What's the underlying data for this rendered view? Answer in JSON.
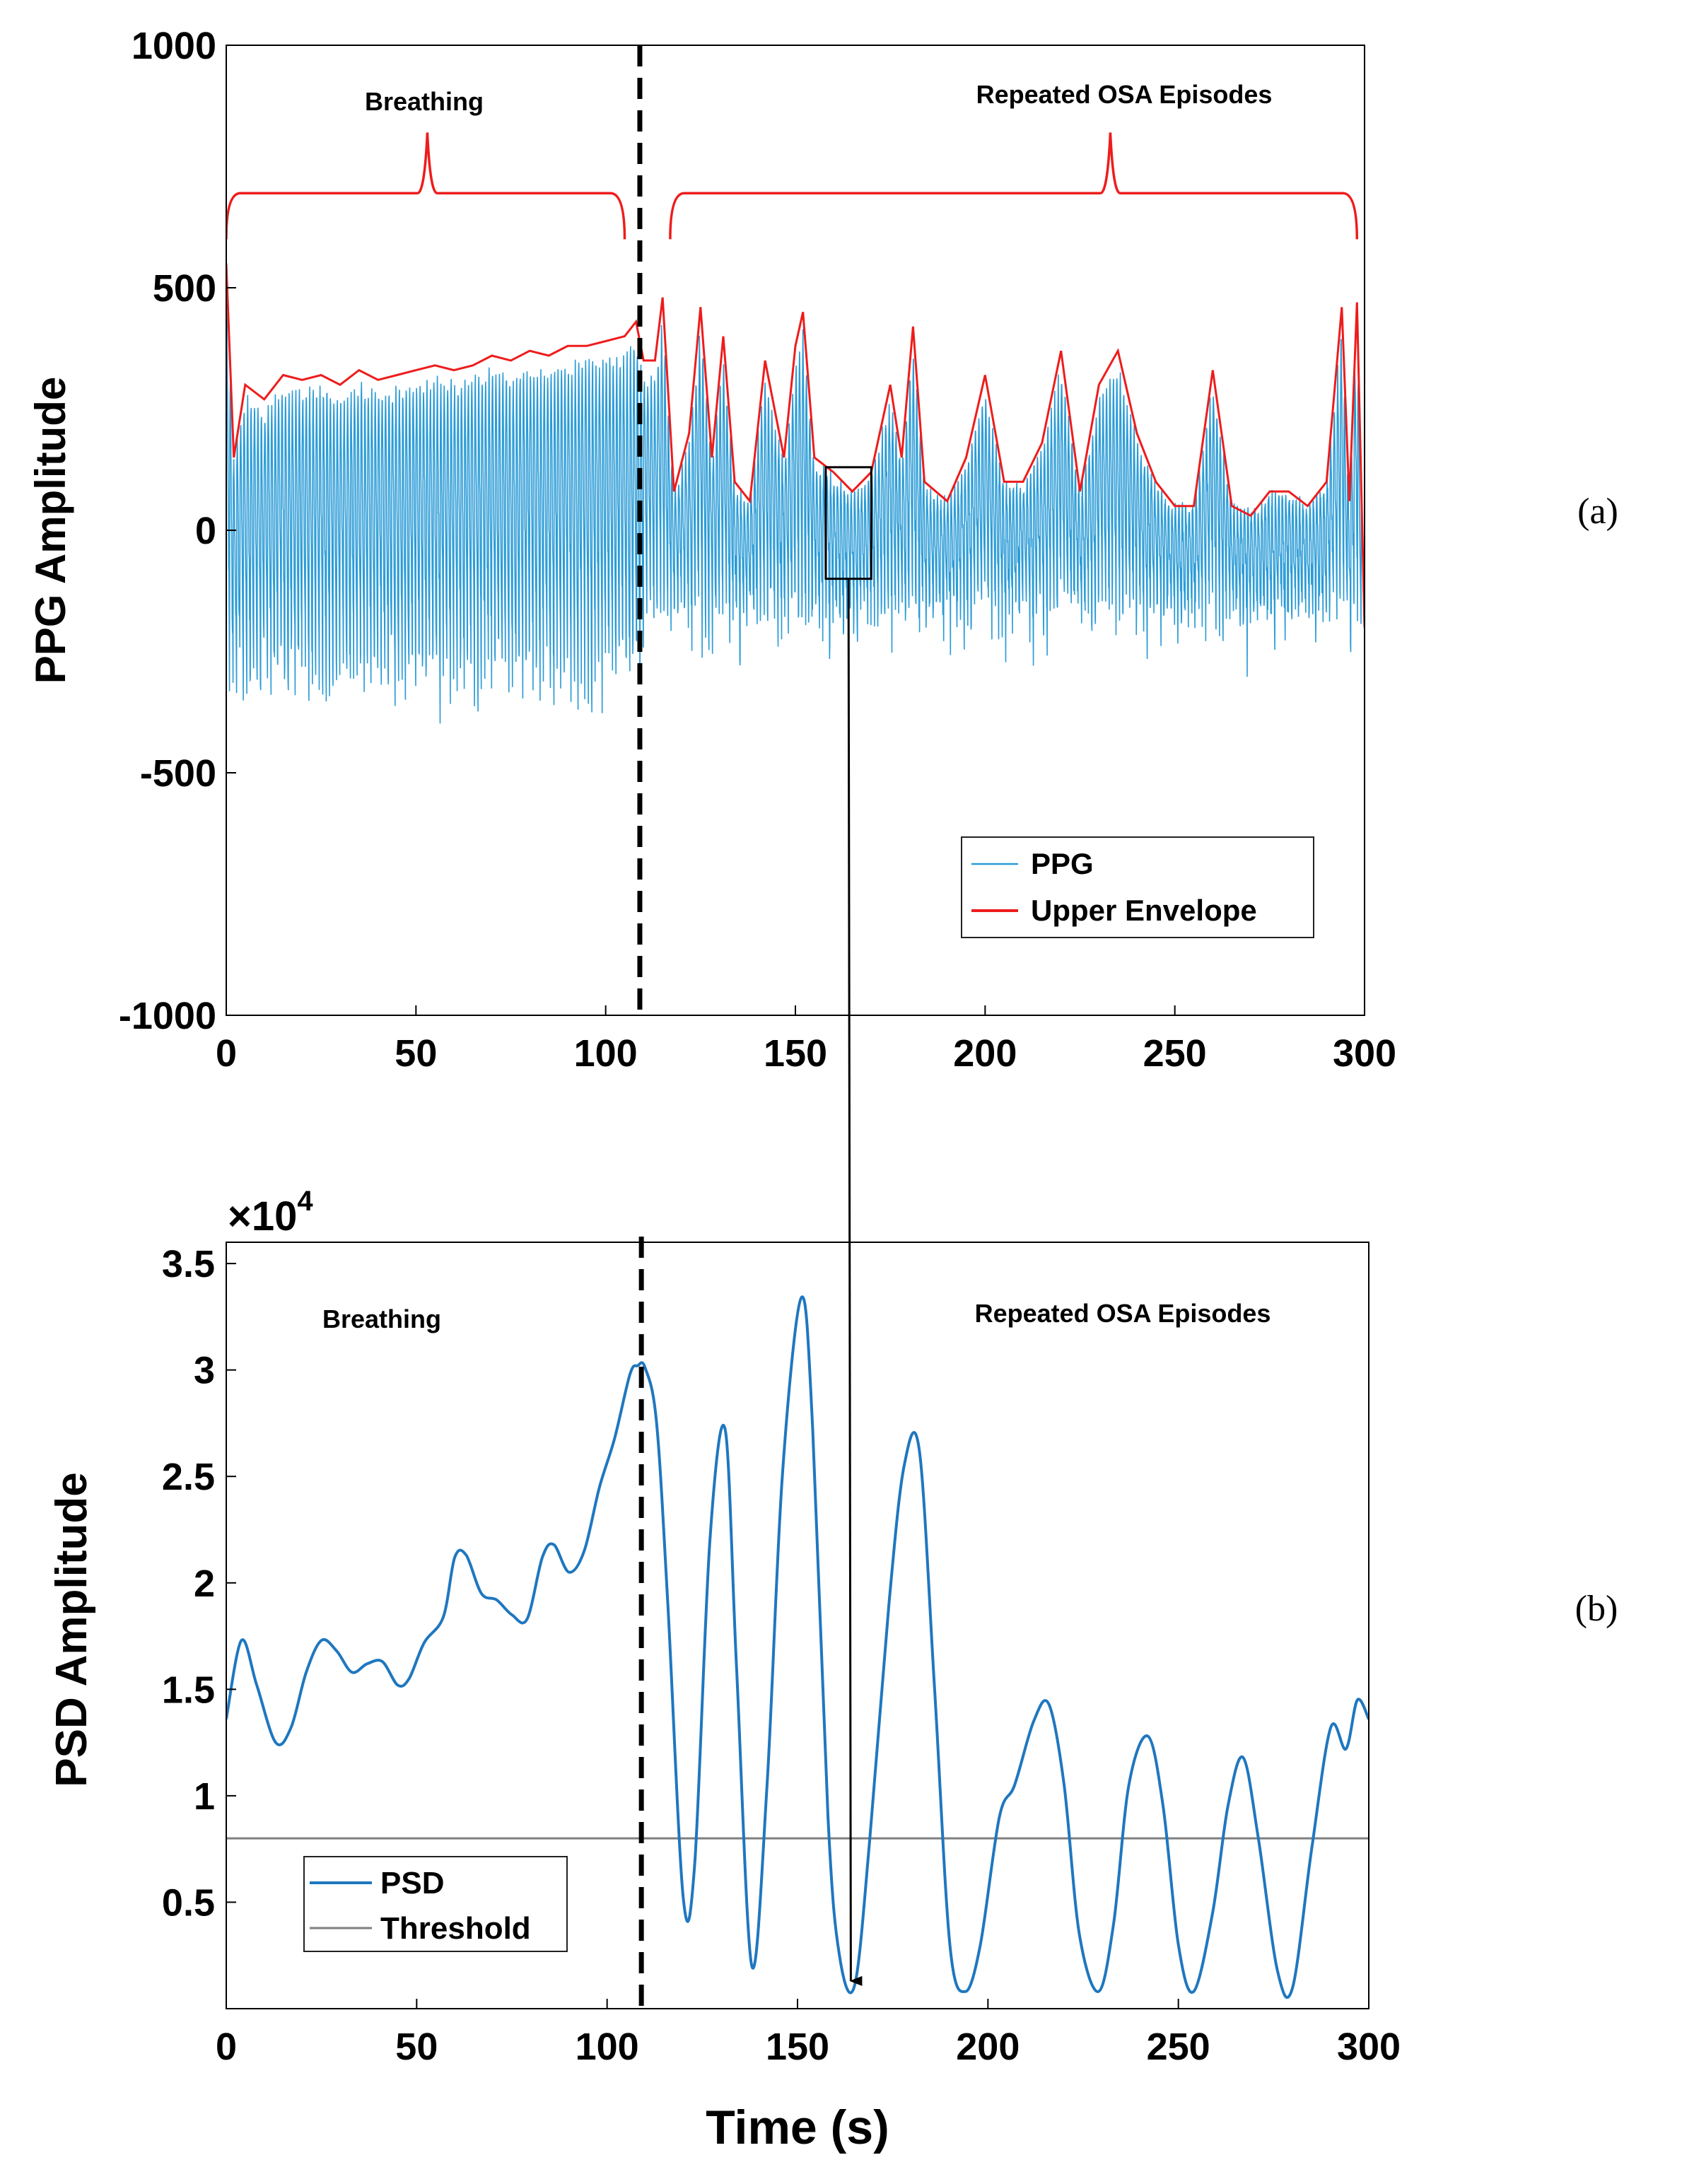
{
  "chart_data": [
    {
      "type": "line",
      "panel": "(a)",
      "xlabel": "",
      "ylabel": "PPG Amplitude",
      "xlim": [
        0,
        300
      ],
      "ylim": [
        -1000,
        1000
      ],
      "xticks": [
        0,
        50,
        100,
        150,
        200,
        250,
        300
      ],
      "yticks": [
        -1000,
        -500,
        0,
        500,
        1000
      ],
      "grid": false,
      "legend_position": "bottom-right",
      "legend": [
        "PPG",
        "Upper Envelope"
      ],
      "series": [
        {
          "name": "PPG",
          "color": "#2b9bd6",
          "description": "oscillatory signal about 0, roughly -500 to 400"
        },
        {
          "name": "Upper Envelope",
          "color": "#ee1c1c",
          "x": [
            0,
            2,
            5,
            10,
            15,
            20,
            25,
            30,
            35,
            40,
            45,
            50,
            55,
            60,
            65,
            70,
            75,
            80,
            85,
            90,
            95,
            100,
            105,
            108,
            110,
            113,
            115,
            118,
            122,
            125,
            128,
            131,
            134,
            138,
            142,
            147,
            150,
            152,
            155,
            160,
            165,
            170,
            175,
            178,
            181,
            184,
            190,
            195,
            200,
            205,
            210,
            215,
            220,
            225,
            230,
            235,
            240,
            245,
            250,
            255,
            260,
            265,
            270,
            275,
            280,
            285,
            290,
            294,
            296,
            298,
            300
          ],
          "y": [
            550,
            150,
            300,
            270,
            320,
            310,
            320,
            300,
            330,
            310,
            320,
            330,
            340,
            330,
            340,
            360,
            350,
            370,
            360,
            380,
            380,
            390,
            400,
            430,
            350,
            350,
            480,
            80,
            200,
            460,
            150,
            400,
            100,
            60,
            350,
            150,
            380,
            450,
            150,
            120,
            80,
            120,
            300,
            150,
            420,
            100,
            60,
            150,
            320,
            100,
            100,
            180,
            370,
            80,
            300,
            370,
            200,
            100,
            50,
            50,
            330,
            50,
            30,
            80,
            80,
            50,
            100,
            460,
            60,
            470,
            -200
          ]
        }
      ],
      "annotations": {
        "breathing": "Breathing",
        "osa": "Repeated OSA Episodes",
        "divider_x": 109,
        "zoom_box": {
          "x0": 158,
          "x1": 170,
          "y0": -100,
          "y1": 130
        }
      },
      "brackets": {
        "breathing": {
          "x0": 0,
          "x1": 105,
          "peak_x": 53,
          "level": 695,
          "peak": 820
        },
        "osa": {
          "x0": 117,
          "x1": 298,
          "peak_x": 233,
          "level": 695,
          "peak": 820
        }
      }
    },
    {
      "type": "line",
      "panel": "(b)",
      "xlabel": "Time (s)",
      "ylabel": "PSD Amplitude",
      "multiplier": "×10",
      "multiplier_exp": "4",
      "xlim": [
        0,
        300
      ],
      "ylim": [
        0,
        3.6
      ],
      "xticks": [
        0,
        50,
        100,
        150,
        200,
        250,
        300
      ],
      "yticks": [
        0.5,
        1,
        1.5,
        2,
        2.5,
        3,
        3.5
      ],
      "ytick_labels": [
        "0.5",
        "1",
        "1.5",
        "2",
        "2.5",
        "3",
        "3.5"
      ],
      "grid": false,
      "legend_position": "bottom-left",
      "legend": [
        "PSD",
        "Threshold"
      ],
      "series": [
        {
          "name": "PSD",
          "color": "#1f77bf",
          "x": [
            0,
            4,
            8,
            13,
            17,
            21,
            25,
            29,
            33,
            37,
            41,
            45,
            48,
            52,
            57,
            60,
            63,
            67,
            71,
            75,
            79,
            83,
            86,
            90,
            94,
            98,
            102,
            106,
            108,
            110,
            113,
            116,
            120,
            123,
            127,
            131,
            134,
            138,
            142,
            146,
            151,
            154,
            158,
            161,
            165,
            169,
            174,
            178,
            182,
            186,
            190,
            194,
            198,
            203,
            207,
            212,
            216,
            220,
            224,
            229,
            233,
            237,
            242,
            246,
            250,
            254,
            259,
            263,
            267,
            271,
            276,
            280,
            285,
            290,
            294,
            297,
            300
          ],
          "y": [
            1.36,
            1.73,
            1.52,
            1.25,
            1.32,
            1.58,
            1.73,
            1.68,
            1.58,
            1.62,
            1.63,
            1.52,
            1.55,
            1.72,
            1.84,
            2.12,
            2.13,
            1.95,
            1.92,
            1.85,
            1.83,
            2.12,
            2.18,
            2.05,
            2.15,
            2.45,
            2.68,
            2.98,
            3.02,
            3.01,
            2.75,
            1.88,
            0.52,
            0.68,
            2.2,
            2.72,
            1.6,
            0.2,
            1.05,
            2.5,
            3.34,
            2.72,
            0.9,
            0.25,
            0.11,
            0.8,
            1.9,
            2.55,
            2.62,
            1.5,
            0.3,
            0.08,
            0.3,
            0.9,
            1.05,
            1.35,
            1.43,
            1.05,
            0.35,
            0.08,
            0.4,
            1.05,
            1.28,
            0.95,
            0.3,
            0.08,
            0.45,
            0.95,
            1.18,
            0.8,
            0.18,
            0.1,
            0.75,
            1.32,
            1.22,
            1.45,
            1.36
          ]
        },
        {
          "name": "Threshold",
          "color": "#7f7f7f",
          "x": [
            0,
            300
          ],
          "y": [
            0.8,
            0.8
          ]
        }
      ],
      "annotations": {
        "breathing": "Breathing",
        "osa": "Repeated OSA Episodes",
        "divider_x": 109,
        "arrow_target_x": 164,
        "arrow_target_y": 0.11
      }
    }
  ]
}
